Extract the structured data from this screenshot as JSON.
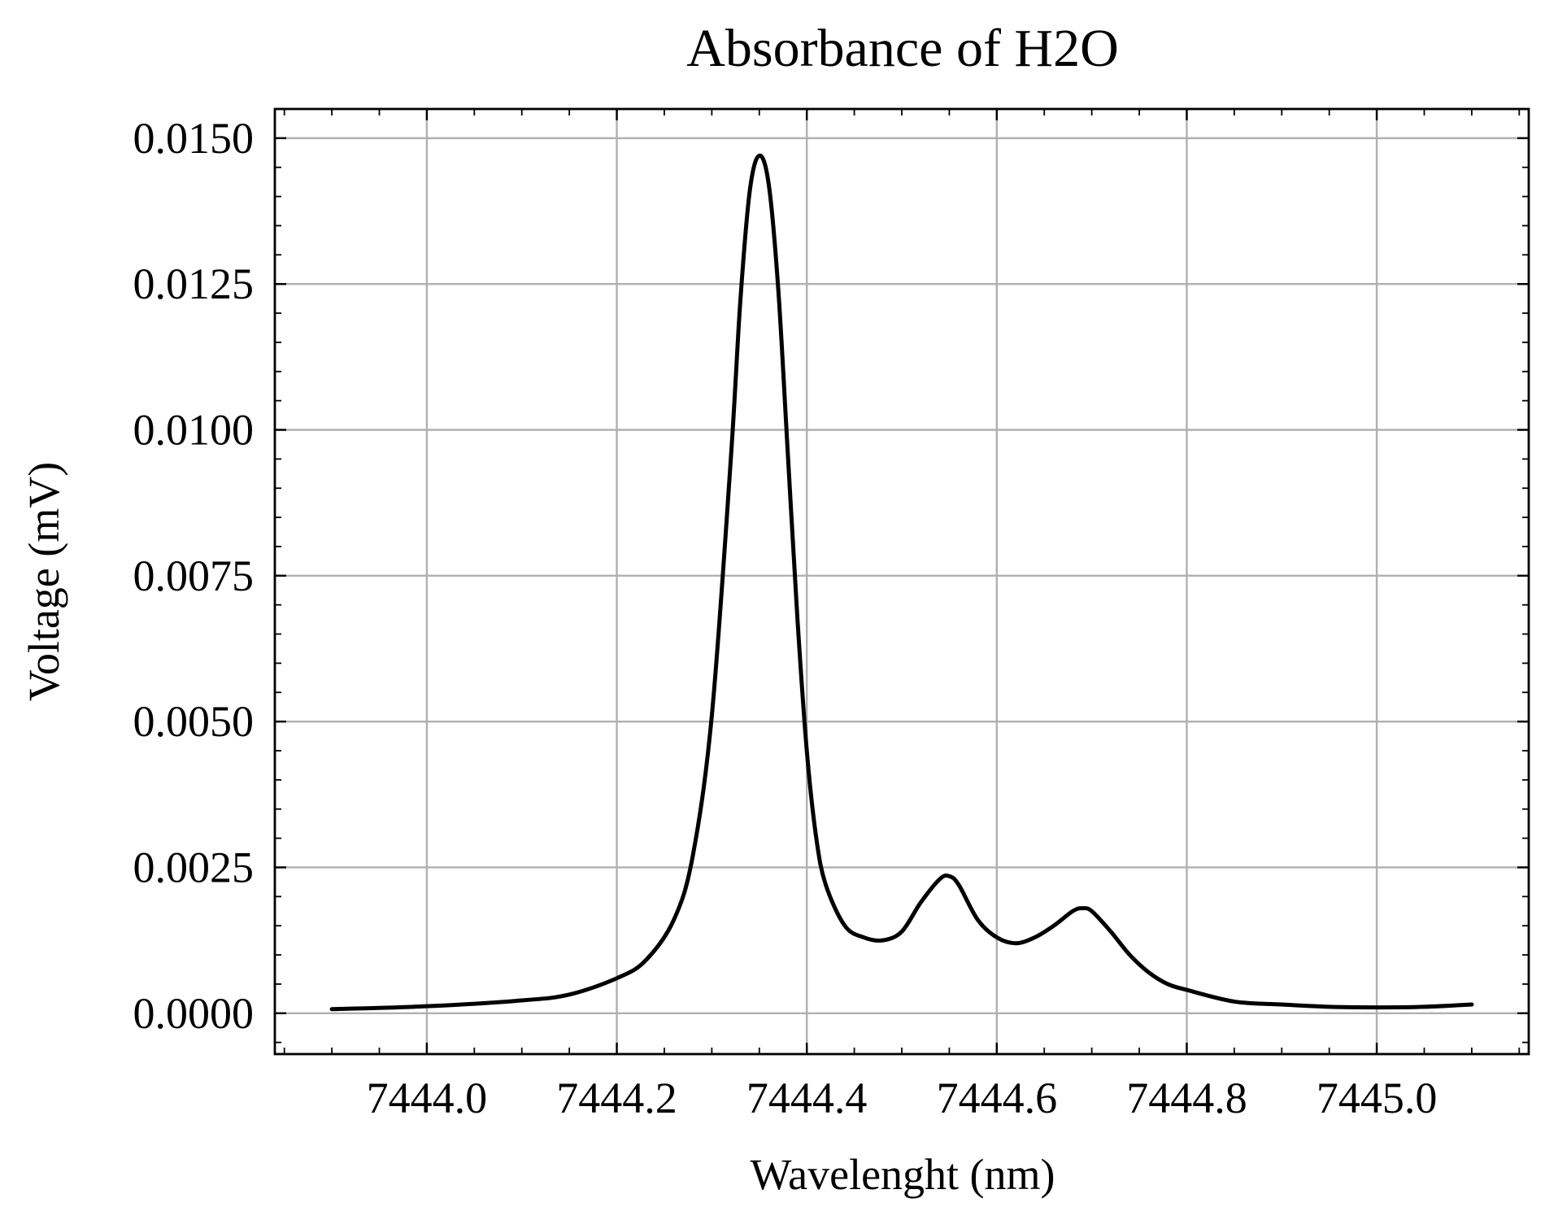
{
  "chart_data": {
    "type": "line",
    "title": "Absorbance of H2O",
    "xlabel": "Wavelenght (nm)",
    "ylabel": "Voltage (mV)",
    "xlim": [
      7443.84,
      7445.16
    ],
    "ylim": [
      -0.0007,
      0.0155
    ],
    "xticks": [
      7444.0,
      7444.2,
      7444.4,
      7444.6,
      7444.8,
      7445.0
    ],
    "xtick_labels": [
      "7444.0",
      "7444.2",
      "7444.4",
      "7444.6",
      "7444.8",
      "7445.0"
    ],
    "yticks": [
      0.0,
      0.0025,
      0.005,
      0.0075,
      0.01,
      0.0125,
      0.015
    ],
    "ytick_labels": [
      "0.0000",
      "0.0025",
      "0.0050",
      "0.0075",
      "0.0100",
      "0.0125",
      "0.0150"
    ],
    "grid": true,
    "line_color": "#000000",
    "series": [
      {
        "x": [
          7443.9,
          7444.0,
          7444.1,
          7444.15,
          7444.2,
          7444.23,
          7444.26,
          7444.28,
          7444.3,
          7444.32,
          7444.33,
          7444.34,
          7444.35,
          7444.36,
          7444.37,
          7444.38,
          7444.39,
          7444.4,
          7444.41,
          7444.42,
          7444.44,
          7444.46,
          7444.48,
          7444.5,
          7444.52,
          7444.54,
          7444.55,
          7444.56,
          7444.58,
          7444.6,
          7444.62,
          7444.64,
          7444.66,
          7444.68,
          7444.69,
          7444.7,
          7444.72,
          7444.74,
          7444.76,
          7444.78,
          7444.8,
          7444.85,
          7444.9,
          7444.95,
          7445.0,
          7445.05,
          7445.1
        ],
        "y": [
          7e-05,
          0.00012,
          0.00022,
          0.00032,
          0.0006,
          0.0009,
          0.0016,
          0.0027,
          0.0051,
          0.0095,
          0.0122,
          0.0141,
          0.0147,
          0.0142,
          0.0124,
          0.0096,
          0.0068,
          0.0045,
          0.003,
          0.0022,
          0.0015,
          0.0013,
          0.00125,
          0.0014,
          0.0019,
          0.0023,
          0.00235,
          0.0022,
          0.0016,
          0.0013,
          0.0012,
          0.0013,
          0.0015,
          0.00175,
          0.0018,
          0.00175,
          0.0014,
          0.001,
          0.0007,
          0.0005,
          0.0004,
          0.0002,
          0.00015,
          0.00011,
          0.0001,
          0.00011,
          0.00015
        ]
      }
    ]
  }
}
